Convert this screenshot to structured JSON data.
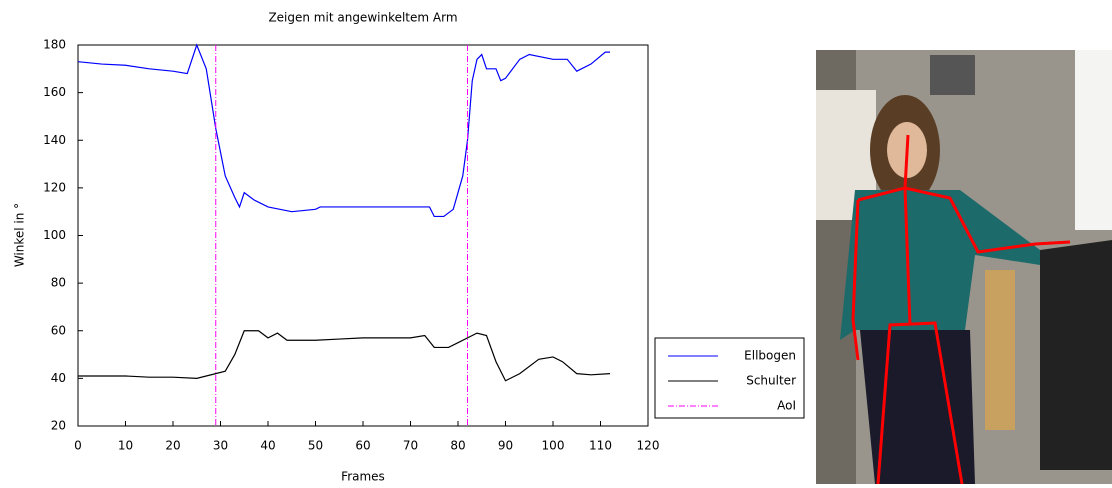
{
  "chart_data": {
    "type": "line",
    "title": "Zeigen mit angewinkeltem Arm",
    "x_label": "Frames",
    "y_label": "Winkel in °",
    "xlim": [
      0,
      120
    ],
    "xticks": [
      0,
      10,
      20,
      30,
      40,
      50,
      60,
      70,
      80,
      90,
      100,
      110,
      120
    ],
    "ylim": [
      20,
      180
    ],
    "yticks": [
      20,
      40,
      60,
      80,
      100,
      120,
      140,
      160,
      180
    ],
    "legend": "right",
    "series": [
      {
        "name": "Ellbogen",
        "color": "#0000ff",
        "x": [
          0,
          5,
          10,
          15,
          20,
          23,
          25,
          27,
          29,
          31,
          33,
          34,
          35,
          37,
          40,
          45,
          50,
          51,
          60,
          70,
          74,
          75,
          77,
          79,
          81,
          82,
          83,
          84,
          85,
          86,
          88,
          89,
          90,
          93,
          95,
          100,
          103,
          105,
          108,
          111,
          112
        ],
        "values": [
          173,
          172,
          171.5,
          170,
          169,
          168,
          180,
          170,
          145,
          125,
          116,
          112,
          118,
          115,
          112,
          110,
          111,
          112,
          112,
          112,
          112,
          108,
          108,
          111,
          125,
          140,
          165,
          174,
          176,
          170,
          170,
          165,
          166,
          174,
          176,
          174,
          174,
          169,
          172,
          177,
          177
        ]
      },
      {
        "name": "Schulter",
        "color": "#000000",
        "x": [
          0,
          10,
          15,
          20,
          25,
          27,
          29,
          31,
          33,
          35,
          38,
          40,
          42,
          44,
          50,
          55,
          60,
          70,
          73,
          75,
          78,
          80,
          82,
          84,
          86,
          88,
          90,
          93,
          97,
          100,
          102,
          105,
          108,
          112
        ],
        "values": [
          41,
          41,
          40.5,
          40.5,
          40,
          41,
          42,
          43,
          50,
          60,
          60,
          57,
          59,
          56,
          56,
          56.5,
          57,
          57,
          58,
          53,
          53,
          55,
          57,
          59,
          58,
          47,
          39,
          42,
          48,
          49,
          47,
          42,
          41.5,
          42
        ]
      }
    ],
    "vlines": {
      "name": "AoI",
      "color": "#ff00ff",
      "x": [
        29,
        82
      ]
    }
  }
}
